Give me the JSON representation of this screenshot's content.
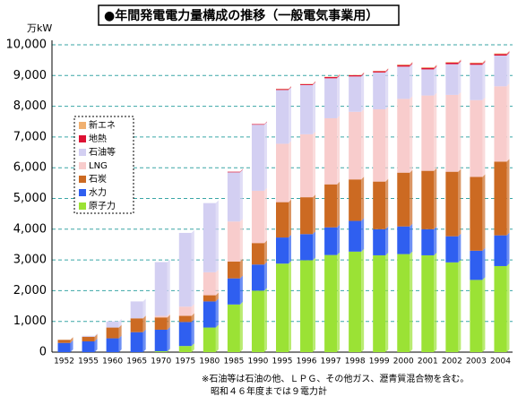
{
  "chart_data": {
    "type": "stacked-bar",
    "title": "●年間発電電力量構成の推移（一般電気事業用）",
    "y_unit": "万kW",
    "categories": [
      "1952",
      "1955",
      "1960",
      "1965",
      "1970",
      "1975",
      "1980",
      "1985",
      "1990",
      "1995",
      "1996",
      "1997",
      "1998",
      "1999",
      "2000",
      "2001",
      "2002",
      "2003",
      "2004"
    ],
    "series": [
      {
        "name": "原子力",
        "color": "#9be235",
        "values": [
          0,
          0,
          0,
          0,
          30,
          200,
          800,
          1550,
          2000,
          2880,
          2990,
          3160,
          3270,
          3150,
          3190,
          3150,
          2920,
          2350,
          2800
        ]
      },
      {
        "name": "水力",
        "color": "#2f5ff0",
        "values": [
          300,
          350,
          450,
          650,
          700,
          780,
          850,
          850,
          850,
          850,
          850,
          900,
          1000,
          850,
          900,
          850,
          850,
          950,
          1000
        ]
      },
      {
        "name": "石炭",
        "color": "#cc6a22",
        "values": [
          100,
          150,
          350,
          450,
          400,
          200,
          200,
          550,
          700,
          1150,
          1200,
          1400,
          1350,
          1550,
          1750,
          1900,
          2100,
          2400,
          2400
        ]
      },
      {
        "name": "LNG",
        "color": "#f8cccc",
        "values": [
          0,
          0,
          0,
          0,
          50,
          300,
          750,
          1300,
          1700,
          1900,
          2050,
          2150,
          2200,
          2350,
          2400,
          2450,
          2500,
          2500,
          2450
        ]
      },
      {
        "name": "石油等",
        "color": "#d3cff2",
        "values": [
          0,
          30,
          200,
          550,
          1750,
          2400,
          2250,
          1600,
          2150,
          1750,
          1600,
          1300,
          1150,
          1200,
          1050,
          850,
          1000,
          1150,
          1000
        ]
      },
      {
        "name": "地熱",
        "color": "#dd1133",
        "values": [
          0,
          0,
          0,
          0,
          0,
          0,
          0,
          20,
          20,
          30,
          30,
          40,
          40,
          40,
          50,
          50,
          50,
          50,
          50
        ]
      },
      {
        "name": "新エネ",
        "color": "#f0b070",
        "values": [
          0,
          0,
          0,
          0,
          0,
          0,
          0,
          0,
          0,
          10,
          10,
          10,
          10,
          10,
          20,
          20,
          20,
          20,
          20
        ]
      }
    ],
    "ylim": [
      0,
      10000
    ],
    "yticks": [
      0,
      {
        "value": 1000,
        "label": "1,000"
      },
      {
        "value": 2000,
        "label": "2,000"
      },
      {
        "value": 3000,
        "label": "3,000"
      },
      {
        "value": 4000,
        "label": "4,000"
      },
      {
        "value": 5000,
        "label": "5,000"
      },
      {
        "value": 6000,
        "label": "6,000"
      },
      {
        "value": 7000,
        "label": "7,000"
      },
      {
        "value": 8000,
        "label": "8,000"
      },
      {
        "value": 9000,
        "label": "9,000"
      },
      {
        "value": 10000,
        "label": "10,000"
      }
    ],
    "grid": true,
    "notes": [
      "※石油等は石油の他、ＬＰＧ、その他ガス、瀝青質混合物を含む。",
      "昭和４６年度までは９電力計"
    ]
  }
}
